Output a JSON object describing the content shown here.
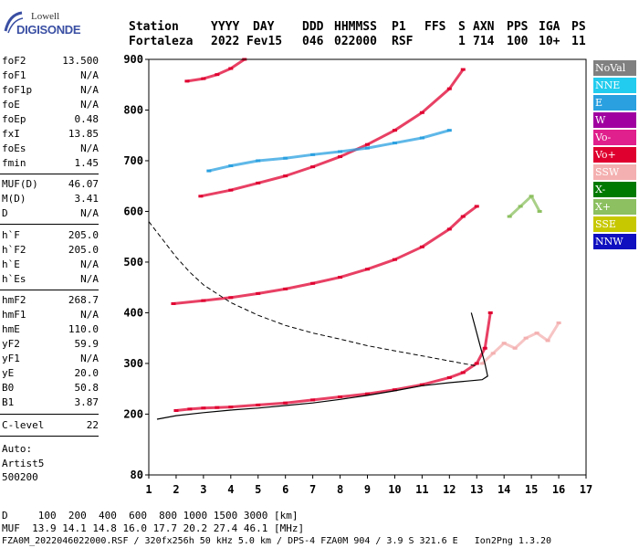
{
  "logo": {
    "line1": "Lowell",
    "line2": "DIGISONDE"
  },
  "header": {
    "labels": [
      "Station",
      "YYYY",
      "DAY",
      "DDD",
      "HHMMSS",
      "P1",
      "FFS",
      "S",
      "AXN",
      "PPS",
      "IGA",
      "PS"
    ],
    "values": [
      "Fortaleza",
      "2022",
      "Fev15",
      "046",
      "022000",
      "RSF",
      "1",
      "714",
      "100",
      "10+",
      "11"
    ]
  },
  "scaled": {
    "group1": [
      {
        "k": "foF2",
        "v": "13.500"
      },
      {
        "k": "foF1",
        "v": "N/A"
      },
      {
        "k": "foF1p",
        "v": "N/A"
      },
      {
        "k": "foE",
        "v": "N/A"
      },
      {
        "k": "foEp",
        "v": "0.48"
      },
      {
        "k": "fxI",
        "v": "13.85"
      },
      {
        "k": "foEs",
        "v": "N/A"
      },
      {
        "k": "fmin",
        "v": "1.45"
      }
    ],
    "group2": [
      {
        "k": "MUF(D)",
        "v": "46.07"
      },
      {
        "k": "M(D)",
        "v": "3.41"
      },
      {
        "k": "D",
        "v": "N/A"
      }
    ],
    "group3": [
      {
        "k": "h`F",
        "v": "205.0"
      },
      {
        "k": "h`F2",
        "v": "205.0"
      },
      {
        "k": "h`E",
        "v": "N/A"
      },
      {
        "k": "h`Es",
        "v": "N/A"
      }
    ],
    "group4": [
      {
        "k": "hmF2",
        "v": "268.7"
      },
      {
        "k": "hmF1",
        "v": "N/A"
      },
      {
        "k": "hmE",
        "v": "110.0"
      },
      {
        "k": "yF2",
        "v": "59.9"
      },
      {
        "k": "yF1",
        "v": "N/A"
      },
      {
        "k": "yE",
        "v": "20.0"
      },
      {
        "k": "B0",
        "v": "50.8"
      },
      {
        "k": "B1",
        "v": "3.87"
      }
    ],
    "group5": [
      {
        "k": "C-level",
        "v": "22"
      }
    ],
    "auto": [
      "Auto:",
      "Artist5",
      "500200"
    ]
  },
  "legend": [
    {
      "label": "NoVal",
      "color": "#808080"
    },
    {
      "label": "NNE",
      "color": "#22ccee"
    },
    {
      "label": "E",
      "color": "#2aa0e0"
    },
    {
      "label": "W",
      "color": "#a000a0"
    },
    {
      "label": "Vo-",
      "color": "#e0208c"
    },
    {
      "label": "Vo+",
      "color": "#e00030"
    },
    {
      "label": "SSW",
      "color": "#f4b0b0"
    },
    {
      "label": "X-",
      "color": "#007a00"
    },
    {
      "label": "X+",
      "color": "#8cc060"
    },
    {
      "label": "SSE",
      "color": "#c8c800"
    },
    {
      "label": "NNW",
      "color": "#1010c0"
    }
  ],
  "footer": {
    "line1": "D     100  200  400  600  800 1000 1500 3000 [km]",
    "line2": "MUF  13.9 14.1 14.8 16.0 17.7 20.2 27.4 46.1 [MHz]",
    "line3": "FZA0M_2022046022000.RSF / 320fx256h 50 kHz 5.0 km / DPS-4 FZA0M 904 / 3.9 S 321.6 E   Ion2Png 1.3.20"
  },
  "chart_data": {
    "type": "scatter",
    "xlim": [
      1,
      17
    ],
    "ylim": [
      80,
      900
    ],
    "xticks": [
      1,
      2,
      3,
      4,
      5,
      6,
      7,
      8,
      9,
      10,
      11,
      12,
      13,
      14,
      15,
      16,
      17
    ],
    "yticks": [
      80,
      200,
      300,
      400,
      500,
      600,
      700,
      800,
      900
    ],
    "grid": false,
    "legend_position": "right",
    "series": [
      {
        "color": "#e00030",
        "x": [
          2.0,
          2.5,
          3.0,
          3.5,
          4.0,
          5.0,
          6.0,
          7.0,
          8.0,
          9.0,
          10.0,
          11.0,
          12.0,
          12.5,
          13.0,
          13.3,
          13.5
        ],
        "y": [
          207,
          210,
          212,
          213,
          214,
          218,
          222,
          228,
          234,
          240,
          248,
          258,
          272,
          282,
          300,
          330,
          400
        ]
      },
      {
        "color": "#e00030",
        "x": [
          1.9,
          3,
          4,
          5,
          6,
          7,
          8,
          9,
          10,
          11,
          12,
          12.5,
          13.0
        ],
        "y": [
          418,
          424,
          430,
          438,
          447,
          458,
          470,
          486,
          505,
          530,
          565,
          590,
          610
        ]
      },
      {
        "color": "#e00030",
        "x": [
          2.9,
          4,
          5,
          6,
          7,
          8,
          9,
          10,
          11,
          12,
          12.5
        ],
        "y": [
          630,
          642,
          656,
          670,
          688,
          708,
          732,
          760,
          795,
          842,
          880
        ]
      },
      {
        "color": "#e00030",
        "x": [
          2.4,
          3,
          3.5,
          4,
          4.5
        ],
        "y": [
          857,
          862,
          870,
          882,
          900
        ]
      },
      {
        "color": "#2aa0e0",
        "x": [
          3.2,
          4,
          5,
          6,
          7,
          8,
          9,
          10,
          11,
          12
        ],
        "y": [
          680,
          690,
          700,
          705,
          712,
          718,
          725,
          735,
          745,
          760
        ]
      },
      {
        "color": "#f4b0b0",
        "x": [
          13.2,
          13.6,
          14.0,
          14.4,
          14.8,
          15.2,
          15.6,
          16.0
        ],
        "y": [
          300,
          320,
          340,
          330,
          350,
          360,
          345,
          380
        ]
      },
      {
        "color": "#8cc060",
        "x": [
          14.2,
          14.6,
          15.0,
          15.3
        ],
        "y": [
          590,
          610,
          630,
          600
        ]
      }
    ],
    "profile": {
      "x": [
        1.3,
        2,
        3,
        4,
        5,
        6,
        7,
        8,
        9,
        10,
        11,
        12,
        12.8,
        13.2,
        13.4,
        13.3,
        13.1,
        12.9,
        12.8
      ],
      "y": [
        190,
        197,
        203,
        208,
        212,
        217,
        222,
        229,
        237,
        246,
        256,
        262,
        266,
        268,
        275,
        300,
        340,
        380,
        400
      ]
    },
    "dashed_curve": {
      "x": [
        1.0,
        1.5,
        2.0,
        2.5,
        3.0,
        4.0,
        5.0,
        6.0,
        7.0,
        8.0,
        9.0,
        10.0,
        11.0,
        12.0,
        13.0
      ],
      "y": [
        580,
        545,
        510,
        480,
        455,
        420,
        395,
        375,
        360,
        348,
        335,
        325,
        315,
        305,
        295
      ]
    }
  }
}
